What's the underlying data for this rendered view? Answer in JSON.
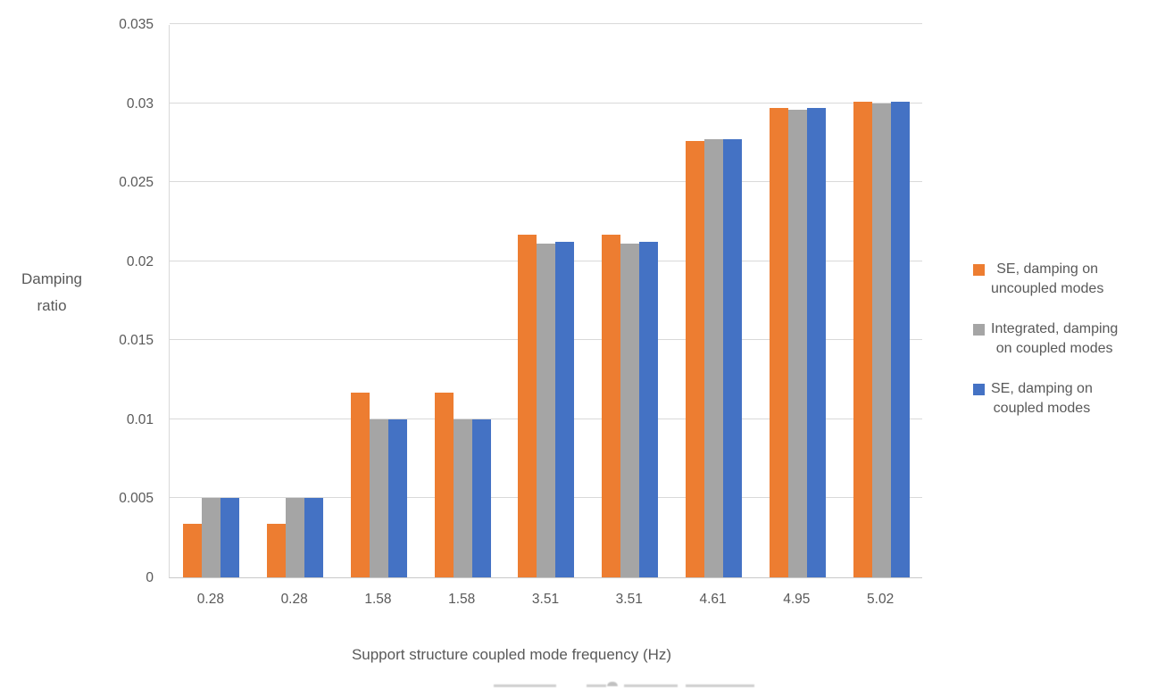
{
  "chart_data": {
    "type": "bar",
    "title": "",
    "xlabel": "Support structure coupled mode frequency (Hz)",
    "ylabel": "Damping ratio",
    "ylabel_lines": [
      "Damping",
      "ratio"
    ],
    "categories": [
      "0.28",
      "0.28",
      "1.58",
      "1.58",
      "3.51",
      "3.51",
      "4.61",
      "4.95",
      "5.02"
    ],
    "series": [
      {
        "name": "SE, damping on uncoupled modes",
        "color": "#ED7D31",
        "values": [
          0.0034,
          0.0034,
          0.0117,
          0.0117,
          0.0217,
          0.0217,
          0.0276,
          0.0297,
          0.0301
        ]
      },
      {
        "name": "Integrated, damping on coupled modes",
        "color": "#A5A5A5",
        "values": [
          0.005,
          0.005,
          0.01,
          0.01,
          0.0211,
          0.0211,
          0.0277,
          0.0296,
          0.03
        ]
      },
      {
        "name": "SE, damping on coupled modes",
        "color": "#4472C4",
        "values": [
          0.005,
          0.005,
          0.01,
          0.01,
          0.0212,
          0.0212,
          0.0277,
          0.0297,
          0.0301
        ]
      }
    ],
    "ylim": [
      0,
      0.035
    ],
    "yticks": [
      "0",
      "0.005",
      "0.01",
      "0.015",
      "0.02",
      "0.025",
      "0.03",
      "0.035"
    ],
    "grid": true,
    "legend_position": "right",
    "legend": [
      {
        "color": "#ED7D31",
        "lines": [
          "SE, damping on",
          "uncoupled modes"
        ]
      },
      {
        "color": "#A5A5A5",
        "lines": [
          "Integrated, damping",
          "on coupled modes"
        ]
      },
      {
        "color": "#4472C4",
        "lines": [
          "SE, damping on",
          "coupled modes"
        ]
      }
    ]
  }
}
